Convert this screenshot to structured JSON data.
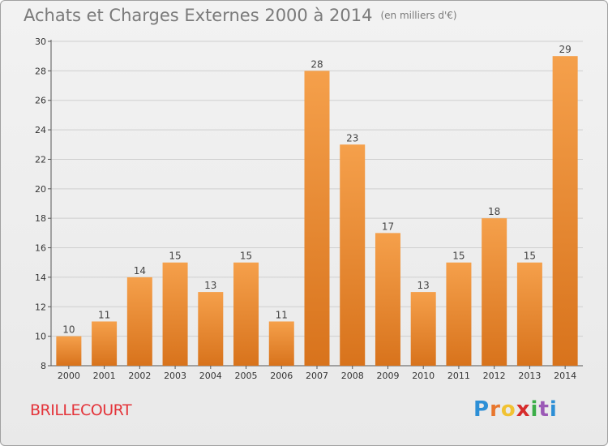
{
  "title": "Achats et Charges Externes 2000 à 2014",
  "unit": "(en milliers d'€)",
  "commune": "BRILLECOURT",
  "logo": {
    "text": "Proxiti",
    "letters": [
      "P",
      "r",
      "o",
      "x",
      "i",
      "t",
      "i"
    ],
    "colors": [
      "#2d8fd6",
      "#e8772e",
      "#f1c232",
      "#d62c2c",
      "#3cae49",
      "#9b59b6",
      "#2d8fd6"
    ]
  },
  "colors": {
    "bar_light": "#f5a04b",
    "bar_dark": "#d8731c",
    "title": "#7a7a7a",
    "commune": "#e4343a"
  },
  "chart_data": {
    "type": "bar",
    "categories": [
      "2000",
      "2001",
      "2002",
      "2003",
      "2004",
      "2005",
      "2006",
      "2007",
      "2008",
      "2009",
      "2010",
      "2011",
      "2012",
      "2013",
      "2014"
    ],
    "values": [
      10,
      11,
      14,
      15,
      13,
      15,
      11,
      28,
      23,
      17,
      13,
      15,
      18,
      15,
      29
    ],
    "title": "Achats et Charges Externes 2000 à 2014",
    "subtitle": "(en milliers d'€)",
    "xlabel": "",
    "ylabel": "",
    "ylim": [
      8,
      30
    ],
    "yticks": [
      8,
      10,
      12,
      14,
      16,
      18,
      20,
      22,
      24,
      26,
      28,
      30
    ],
    "grid": true,
    "legend": "none"
  }
}
